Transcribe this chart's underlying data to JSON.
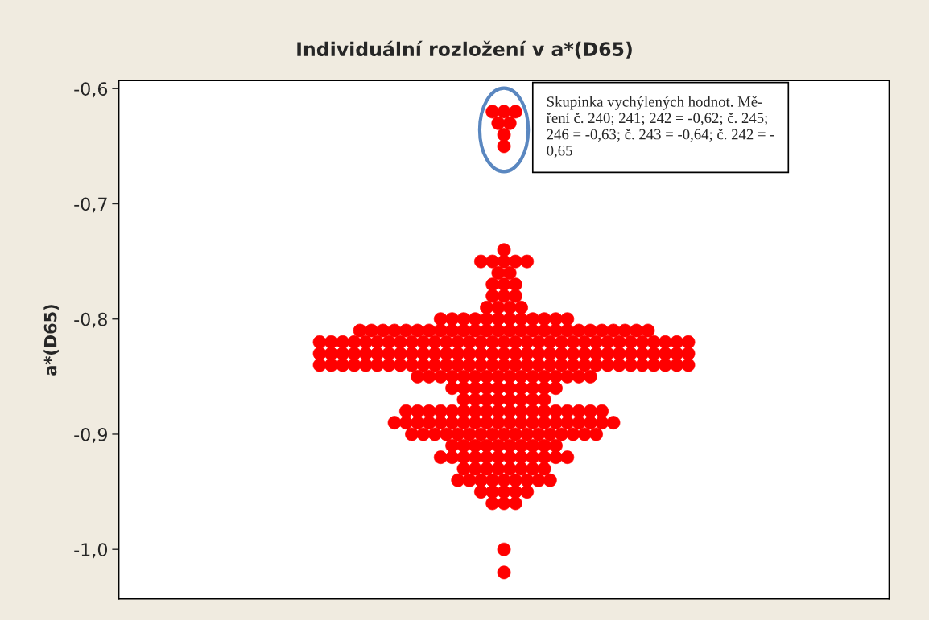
{
  "chart_data": {
    "type": "scatter",
    "title": "Individuální rozložení v a*(D65)",
    "ylabel": "a*(D65)",
    "categories": [
      null
    ],
    "ylim": [
      -1.043,
      -0.593
    ],
    "yticks": [
      {
        "value": -0.6,
        "label": "-0,6"
      },
      {
        "value": -0.7,
        "label": "-0,7"
      },
      {
        "value": -0.8,
        "label": "-0,8"
      },
      {
        "value": -0.9,
        "label": "-0,9"
      },
      {
        "value": -1.0,
        "label": "-1,0"
      }
    ],
    "tick_labels": "y",
    "grid": false,
    "marker": "circle",
    "annotations": [
      "Skupinka vychýlených hodnot. Mě-\nření č. 240; 241; 242 = -0,62; č. 245;\n246 = -0,63; č. 243 = -0,64; č. 242 = -\n0,65"
    ],
    "series": [
      {
        "color": "#ff0000",
        "x": [
          null,
          null,
          null,
          null,
          null,
          null,
          null,
          null,
          null,
          null,
          null,
          null,
          null,
          null,
          null,
          null,
          null,
          null,
          null,
          null,
          null,
          null,
          null,
          null,
          null,
          null,
          null,
          null,
          null,
          null,
          null,
          null,
          null,
          null,
          null,
          null,
          null,
          null,
          null,
          null,
          null,
          null,
          null,
          null,
          null,
          null,
          null,
          null,
          null,
          null,
          null,
          null,
          null,
          null,
          null,
          null,
          null,
          null,
          null,
          null,
          null,
          null,
          null,
          null,
          null,
          null,
          null,
          null,
          null,
          null,
          null,
          null,
          null,
          null,
          null,
          null,
          null,
          null,
          null,
          null,
          null,
          null,
          null,
          null,
          null,
          null,
          null,
          null,
          null,
          null,
          null,
          null,
          null,
          null,
          null,
          null,
          null,
          null,
          null,
          null,
          null,
          null,
          null,
          null,
          null,
          null,
          null,
          null,
          null,
          null,
          null,
          null,
          null,
          null,
          null,
          null,
          null,
          null,
          null,
          null,
          null,
          null,
          null,
          null,
          null,
          null,
          null,
          null,
          null,
          null,
          null,
          null,
          null,
          null,
          null,
          null,
          null,
          null,
          null,
          null,
          null,
          null,
          null,
          null,
          null,
          null,
          null,
          null,
          null,
          null,
          null,
          null,
          null,
          null,
          null,
          null,
          null,
          null,
          null,
          null,
          null,
          null,
          null,
          null,
          null,
          null,
          null,
          null,
          null,
          null,
          null,
          null,
          null,
          null,
          null,
          null,
          null,
          null,
          null,
          null,
          null,
          null,
          null,
          null,
          null,
          null,
          null,
          null,
          null,
          null,
          null,
          null,
          null,
          null,
          null,
          null,
          null,
          null,
          null,
          null,
          null,
          null,
          null,
          null,
          null,
          null,
          null,
          null,
          null,
          null,
          null,
          null,
          null,
          null,
          null,
          null,
          null,
          null,
          null,
          null,
          null,
          null,
          null,
          null,
          null,
          null,
          null,
          null,
          null,
          null,
          null,
          null,
          null,
          null,
          null,
          null,
          null,
          null,
          null,
          null,
          null,
          null,
          null,
          null,
          null,
          null,
          null,
          null,
          null,
          null,
          null,
          null,
          null,
          null,
          null,
          null,
          null,
          null,
          null,
          null,
          null,
          null,
          null,
          null,
          null,
          null,
          null,
          null,
          null,
          null,
          null,
          null,
          null,
          null,
          null,
          null,
          null,
          null,
          null,
          null,
          null,
          null,
          null,
          null,
          null,
          null,
          null,
          null,
          null,
          null,
          null,
          null,
          null,
          null,
          null,
          null,
          null,
          null,
          null,
          null
        ],
        "values": [
          -0.62,
          -0.62,
          -0.62,
          -0.63,
          -0.63,
          -0.64,
          -0.65,
          -0.74,
          -0.75,
          -0.75,
          -0.75,
          -0.75,
          -0.75,
          -0.76,
          -0.76,
          -0.77,
          -0.77,
          -0.77,
          -0.78,
          -0.78,
          -0.78,
          -0.79,
          -0.79,
          -0.79,
          -0.79,
          -0.8,
          -0.8,
          -0.8,
          -0.8,
          -0.8,
          -0.8,
          -0.8,
          -0.8,
          -0.8,
          -0.8,
          -0.8,
          -0.8,
          -0.81,
          -0.81,
          -0.81,
          -0.81,
          -0.81,
          -0.81,
          -0.81,
          -0.81,
          -0.81,
          -0.81,
          -0.81,
          -0.81,
          -0.81,
          -0.81,
          -0.81,
          -0.81,
          -0.81,
          -0.81,
          -0.81,
          -0.81,
          -0.81,
          -0.81,
          -0.81,
          -0.81,
          -0.81,
          -0.81,
          -0.82,
          -0.82,
          -0.82,
          -0.82,
          -0.82,
          -0.82,
          -0.82,
          -0.82,
          -0.82,
          -0.82,
          -0.82,
          -0.82,
          -0.82,
          -0.82,
          -0.82,
          -0.82,
          -0.82,
          -0.82,
          -0.82,
          -0.82,
          -0.82,
          -0.82,
          -0.82,
          -0.82,
          -0.82,
          -0.82,
          -0.82,
          -0.82,
          -0.82,
          -0.82,
          -0.82,
          -0.82,
          -0.82,
          -0.83,
          -0.83,
          -0.83,
          -0.83,
          -0.83,
          -0.83,
          -0.83,
          -0.83,
          -0.83,
          -0.83,
          -0.83,
          -0.83,
          -0.83,
          -0.83,
          -0.83,
          -0.83,
          -0.83,
          -0.83,
          -0.83,
          -0.83,
          -0.83,
          -0.83,
          -0.83,
          -0.83,
          -0.83,
          -0.83,
          -0.83,
          -0.83,
          -0.83,
          -0.83,
          -0.83,
          -0.83,
          -0.83,
          -0.84,
          -0.84,
          -0.84,
          -0.84,
          -0.84,
          -0.84,
          -0.84,
          -0.84,
          -0.84,
          -0.84,
          -0.84,
          -0.84,
          -0.84,
          -0.84,
          -0.84,
          -0.84,
          -0.84,
          -0.84,
          -0.84,
          -0.84,
          -0.84,
          -0.84,
          -0.84,
          -0.84,
          -0.84,
          -0.84,
          -0.84,
          -0.84,
          -0.84,
          -0.84,
          -0.84,
          -0.84,
          -0.84,
          -0.85,
          -0.85,
          -0.85,
          -0.85,
          -0.85,
          -0.85,
          -0.85,
          -0.85,
          -0.85,
          -0.85,
          -0.85,
          -0.85,
          -0.85,
          -0.85,
          -0.85,
          -0.85,
          -0.86,
          -0.86,
          -0.86,
          -0.86,
          -0.86,
          -0.86,
          -0.86,
          -0.86,
          -0.86,
          -0.86,
          -0.87,
          -0.87,
          -0.87,
          -0.87,
          -0.87,
          -0.87,
          -0.87,
          -0.87,
          -0.88,
          -0.88,
          -0.88,
          -0.88,
          -0.88,
          -0.88,
          -0.88,
          -0.88,
          -0.88,
          -0.88,
          -0.88,
          -0.88,
          -0.88,
          -0.88,
          -0.88,
          -0.88,
          -0.88,
          -0.88,
          -0.89,
          -0.89,
          -0.89,
          -0.89,
          -0.89,
          -0.89,
          -0.89,
          -0.89,
          -0.89,
          -0.89,
          -0.89,
          -0.89,
          -0.89,
          -0.89,
          -0.89,
          -0.89,
          -0.89,
          -0.89,
          -0.89,
          -0.89,
          -0.9,
          -0.9,
          -0.9,
          -0.9,
          -0.9,
          -0.9,
          -0.9,
          -0.9,
          -0.9,
          -0.9,
          -0.9,
          -0.9,
          -0.9,
          -0.9,
          -0.9,
          -0.9,
          -0.9,
          -0.91,
          -0.91,
          -0.91,
          -0.91,
          -0.91,
          -0.91,
          -0.91,
          -0.91,
          -0.91,
          -0.91,
          -0.92,
          -0.92,
          -0.92,
          -0.92,
          -0.92,
          -0.92,
          -0.92,
          -0.92,
          -0.92,
          -0.92,
          -0.92,
          -0.92,
          -0.93,
          -0.93,
          -0.93,
          -0.93,
          -0.93,
          -0.93,
          -0.93,
          -0.93,
          -0.94,
          -0.94,
          -0.94,
          -0.94,
          -0.94,
          -0.94,
          -0.94,
          -0.94,
          -0.94,
          -0.95,
          -0.95,
          -0.95,
          -0.95,
          -0.95,
          -0.96,
          -0.96,
          -0.96,
          -1.0,
          -1.02
        ]
      }
    ]
  }
}
